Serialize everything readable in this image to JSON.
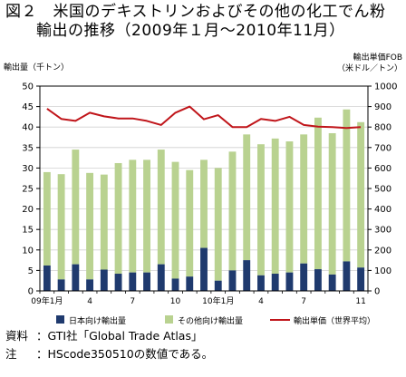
{
  "figure": {
    "title_line1": "図２　米国のデキストリンおよびその他の化工でん粉",
    "title_line2": "輸出の推移（2009年１月～2010年11月）"
  },
  "chart_data": {
    "type": "bar",
    "left_axis_label": "輸出量（千トン）",
    "right_axis_label_1": "輸出単価FOB",
    "right_axis_label_2": "（米ドル／トン）",
    "left_ylim": [
      0,
      50
    ],
    "left_ticks": [
      "0",
      "5",
      "10",
      "15",
      "20",
      "25",
      "30",
      "35",
      "40",
      "45",
      "50"
    ],
    "right_ylim": [
      0,
      1000
    ],
    "right_ticks": [
      "0",
      "100",
      "200",
      "300",
      "400",
      "500",
      "600",
      "700",
      "800",
      "900",
      "1000"
    ],
    "x_tick_labels": [
      {
        "index": 0,
        "label": "09年1月"
      },
      {
        "index": 3,
        "label": "4"
      },
      {
        "index": 6,
        "label": "7"
      },
      {
        "index": 9,
        "label": "10"
      },
      {
        "index": 12,
        "label": "10年1月"
      },
      {
        "index": 15,
        "label": "4"
      },
      {
        "index": 18,
        "label": "7"
      },
      {
        "index": 22,
        "label": "11"
      }
    ],
    "grid": true,
    "legend_position": "bottom",
    "series": [
      {
        "name": "日本向け輸出量",
        "kind": "stacked-bar",
        "color": "#1f3a6e",
        "values": [
          6.2,
          2.8,
          6.5,
          2.8,
          5.2,
          4.2,
          4.5,
          4.5,
          6.5,
          3.0,
          3.5,
          10.5,
          2.5,
          5.0,
          7.5,
          3.8,
          4.2,
          4.5,
          6.7,
          5.3,
          4.0,
          7.2,
          5.7
        ]
      },
      {
        "name": "その他向け輸出量",
        "kind": "stacked-bar",
        "color": "#b9d290",
        "values": [
          22.8,
          25.7,
          28.0,
          26.0,
          23.2,
          27.0,
          27.5,
          27.5,
          28.0,
          28.5,
          26.0,
          21.5,
          27.5,
          29.0,
          30.7,
          32.0,
          33.0,
          32.0,
          31.5,
          37.0,
          34.5,
          37.1,
          35.5
        ]
      },
      {
        "name": "輸出単価（世界平均）",
        "kind": "line",
        "axis": "right",
        "color": "#c0151a",
        "values": [
          890,
          840,
          830,
          870,
          852,
          842,
          842,
          830,
          810,
          870,
          900,
          838,
          858,
          800,
          800,
          840,
          830,
          850,
          810,
          802,
          800,
          795,
          800
        ]
      }
    ]
  },
  "notes": {
    "source_label": "資料",
    "source_text": "：GTI社「Global Trade Atlas」",
    "note_label": "注",
    "note_text": "：HScode350510の数値である。"
  }
}
